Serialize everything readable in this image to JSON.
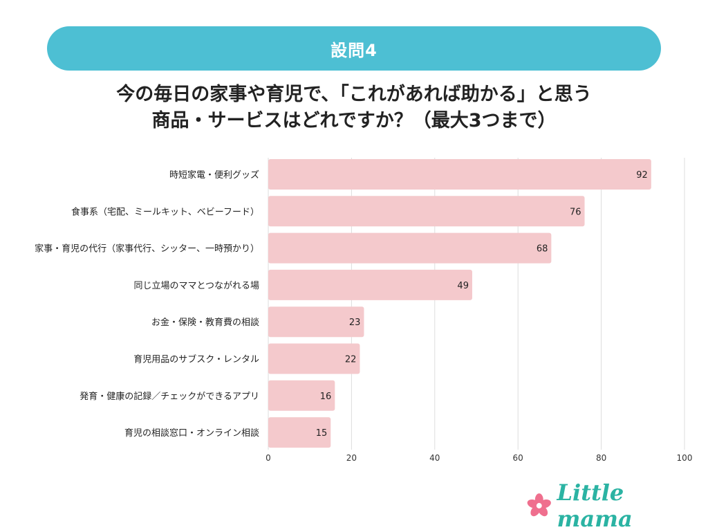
{
  "header": {
    "banner_label": "設問4",
    "question_line1": "今の毎日の家事や育児で、「これがあれば助かる」と思う",
    "question_line2": "商品・サービスはどれですか？（最大3つまで）"
  },
  "chart_data": {
    "type": "bar",
    "orientation": "horizontal",
    "categories": [
      "時短家電・便利グッズ",
      "食事系（宅配、ミールキット、ベビーフード）",
      "家事・育児の代行（家事代行、シッター、一時預かり）",
      "同じ立場のママとつながれる場",
      "お金・保険・教育費の相談",
      "育児用品のサブスク・レンタル",
      "発育・健康の記録／チェックができるアプリ",
      "育児の相談窓口・オンライン相談"
    ],
    "values": [
      92,
      76,
      68,
      49,
      23,
      22,
      16,
      15
    ],
    "xlim": [
      0,
      100
    ],
    "xticks": [
      0,
      20,
      40,
      60,
      80,
      100
    ],
    "grid": true,
    "bar_color": "#f4c9cc",
    "grid_color": "#dddddd"
  },
  "footer": {
    "logo_text": "Little mama",
    "logo_icon": "flower-icon",
    "logo_icon_color": "#ef6f8e"
  },
  "colors": {
    "banner": "#4dbfd3",
    "text": "#222222"
  }
}
